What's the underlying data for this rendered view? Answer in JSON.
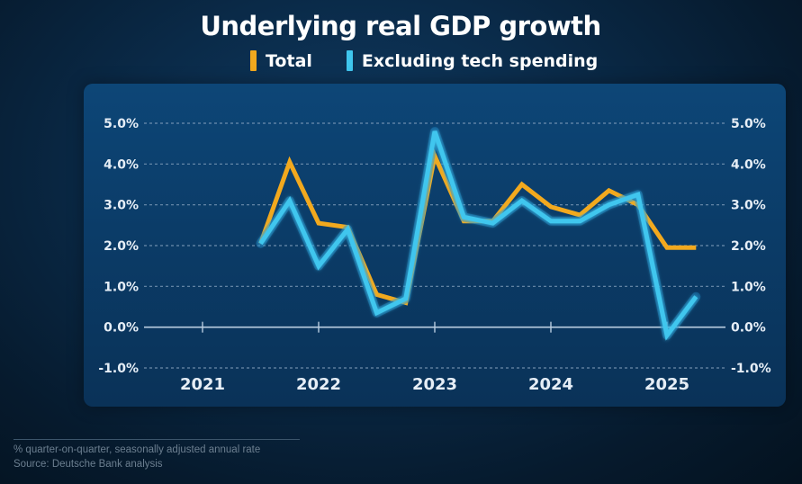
{
  "chart_data": {
    "type": "line",
    "title": "Underlying real GDP growth",
    "xlabel": "",
    "ylabel": "",
    "ylim": [
      -1.0,
      5.0
    ],
    "yticks": [
      -1.0,
      0.0,
      1.0,
      2.0,
      3.0,
      4.0,
      5.0
    ],
    "ytick_labels": [
      "-1.0%",
      "0.0%",
      "1.0%",
      "2.0%",
      "3.0%",
      "4.0%",
      "5.0%"
    ],
    "y_axis_sides": [
      "left",
      "right"
    ],
    "xlim": [
      2020.5,
      2025.65
    ],
    "xticks": [
      2021,
      2022,
      2023,
      2024,
      2025
    ],
    "xtick_labels": [
      "2021",
      "2022",
      "2023",
      "2024",
      "2025"
    ],
    "grid": "horizontal dashed",
    "legend_position": "top-center",
    "x": [
      2021.5,
      2021.75,
      2022.0,
      2022.25,
      2022.5,
      2022.75,
      2023.0,
      2023.25,
      2023.5,
      2023.75,
      2024.0,
      2024.25,
      2024.5,
      2024.75,
      2025.0,
      2025.25
    ],
    "series": [
      {
        "name": "Total",
        "color": "#f2a91e",
        "values": [
          2.05,
          4.05,
          2.55,
          2.45,
          0.8,
          0.6,
          4.2,
          2.6,
          2.6,
          3.5,
          2.95,
          2.75,
          3.35,
          3.0,
          1.95,
          1.95
        ]
      },
      {
        "name": "Excluding tech spending",
        "color": "#3fc6ee",
        "values": [
          2.05,
          3.1,
          1.5,
          2.4,
          0.35,
          0.7,
          4.8,
          2.7,
          2.55,
          3.1,
          2.6,
          2.6,
          3.0,
          3.25,
          -0.2,
          0.75
        ]
      }
    ]
  },
  "legend": [
    {
      "label": "Total",
      "color": "#f2a91e"
    },
    {
      "label": "Excluding tech spending",
      "color": "#3fc6ee"
    }
  ],
  "footnotes": {
    "units": "% quarter-on-quarter, seasonally adjusted annual rate",
    "source": "Source: Deutsche Bank analysis"
  }
}
